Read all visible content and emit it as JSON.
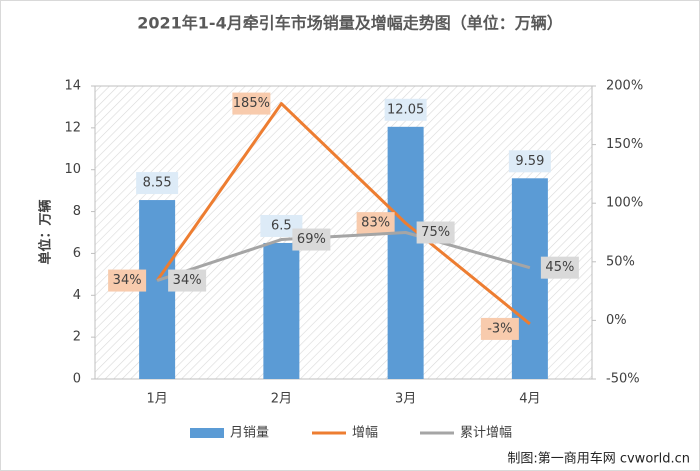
{
  "chart_data": {
    "type": "combo",
    "title": "2021年1-4月牵引车市场销量及增幅走势图（单位：万辆）",
    "y_label": "单位：万辆",
    "categories": [
      "1月",
      "2月",
      "3月",
      "4月"
    ],
    "series": [
      {
        "name": "月销量",
        "type": "bar",
        "color": "#5b9bd5",
        "values": [
          8.55,
          6.5,
          12.05,
          9.59
        ]
      },
      {
        "name": "增幅",
        "type": "line",
        "axis": "y2",
        "color": "#ed7d31",
        "label_color": "#f8cbad",
        "values": [
          34,
          185,
          83,
          -3
        ],
        "value_labels": [
          "34%",
          "185%",
          "83%",
          "-3%"
        ]
      },
      {
        "name": "累计增幅",
        "type": "line",
        "axis": "y2",
        "color": "#a5a5a5",
        "label_color": "#d9d9d9",
        "values": [
          34,
          69,
          75,
          45
        ],
        "value_labels": [
          "34%",
          "69%",
          "75%",
          "45%"
        ]
      }
    ],
    "ylim": [
      0,
      14
    ],
    "yticks": [
      0,
      2,
      4,
      6,
      8,
      10,
      12,
      14
    ],
    "y2lim": [
      -50,
      200
    ],
    "y2ticks": [
      {
        "value": -50,
        "label": "-50%"
      },
      {
        "value": 0,
        "label": "0%"
      },
      {
        "value": 50,
        "label": "50%"
      },
      {
        "value": 100,
        "label": "100%"
      },
      {
        "value": 150,
        "label": "150%"
      },
      {
        "value": 200,
        "label": "200%"
      }
    ],
    "legend": "bottom"
  },
  "watermark": "制图:第一商用车网 cvworld.cn"
}
